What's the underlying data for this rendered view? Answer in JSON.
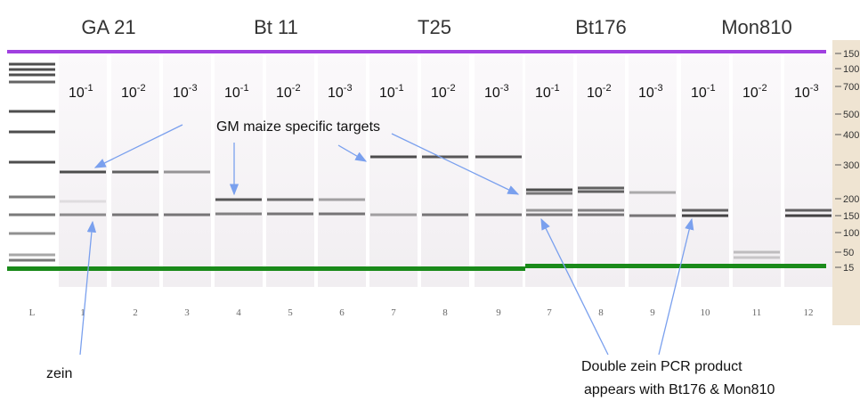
{
  "groups": [
    "GA 21",
    "Bt 11",
    "T25",
    "Bt176",
    "Mon810"
  ],
  "dilutions": [
    {
      "base": "10",
      "exponent": "-1"
    },
    {
      "base": "10",
      "exponent": "-2"
    },
    {
      "base": "10",
      "exponent": "-3"
    },
    {
      "base": "10",
      "exponent": "-1"
    },
    {
      "base": "10",
      "exponent": "-2"
    },
    {
      "base": "10",
      "exponent": "-3"
    },
    {
      "base": "10",
      "exponent": "-1"
    },
    {
      "base": "10",
      "exponent": "-2"
    },
    {
      "base": "10",
      "exponent": "-3"
    },
    {
      "base": "10",
      "exponent": "-1"
    },
    {
      "base": "10",
      "exponent": "-2"
    },
    {
      "base": "10",
      "exponent": "-3"
    },
    {
      "base": "10",
      "exponent": "-1"
    },
    {
      "base": "10",
      "exponent": "-2"
    },
    {
      "base": "10",
      "exponent": "-3"
    }
  ],
  "lanes": [
    "L",
    "1",
    "2",
    "3",
    "4",
    "5",
    "6",
    "7",
    "8",
    "9",
    "7",
    "8",
    "9",
    "10",
    "11",
    "12"
  ],
  "ladder_labels": [
    "150",
    "100",
    "700",
    "500",
    "400",
    "300",
    "200",
    "150",
    "100",
    "50",
    "15"
  ],
  "annotations": {
    "targets": "GM maize specific targets",
    "zein": "zein",
    "double_zein": [
      "Double zein PCR  product",
      "appears with Bt176 & Mon810"
    ]
  }
}
